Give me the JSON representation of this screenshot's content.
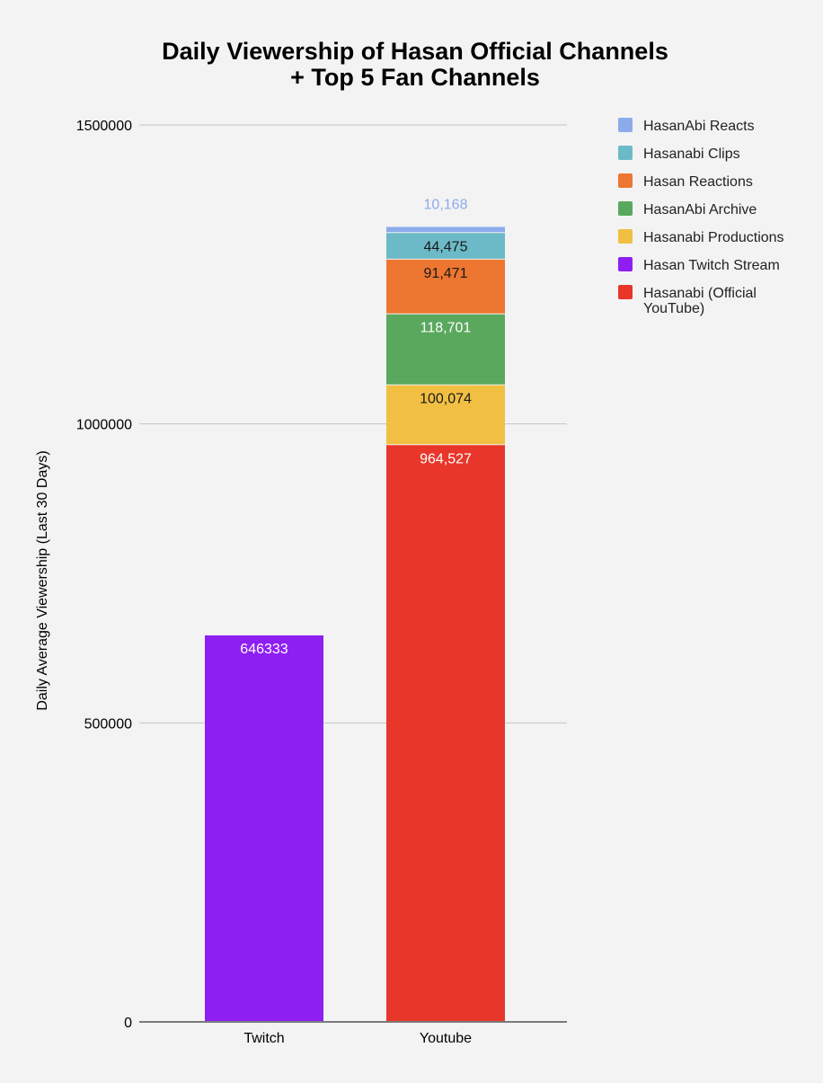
{
  "chart_data": {
    "type": "bar",
    "stacked": true,
    "title_lines": [
      "Daily Viewership of Hasan Official Channels",
      "+ Top 5 Fan Channels"
    ],
    "xlabel": "",
    "ylabel": "Daily Average Viewership (Last 30 Days)",
    "ylim": [
      0,
      1500000
    ],
    "yticks": [
      "0",
      "500000",
      "1000000",
      "1500000"
    ],
    "grid": true,
    "legend_position": "right",
    "categories": [
      "Twitch",
      "Youtube"
    ],
    "series": [
      {
        "name": "Hasanabi (Official YouTube)",
        "legend_lines": [
          "Hasanabi (Official",
          "YouTube)"
        ],
        "values": [
          0,
          964527
        ],
        "labels": [
          "",
          "964,527"
        ],
        "color": "#e8372a",
        "label_color": "#ffffff"
      },
      {
        "name": "Hasan Twitch Stream",
        "legend_lines": [
          "Hasan Twitch Stream"
        ],
        "values": [
          646333,
          0
        ],
        "labels": [
          "646333",
          ""
        ],
        "color": "#8e1ff2",
        "label_color": "#ffffff"
      },
      {
        "name": "Hasanabi Productions",
        "legend_lines": [
          "Hasanabi Productions"
        ],
        "values": [
          0,
          100074
        ],
        "labels": [
          "",
          "100,074"
        ],
        "color": "#f1bf42",
        "label_color": "#1a1a1a"
      },
      {
        "name": "HasanAbi Archive",
        "legend_lines": [
          "HasanAbi Archive"
        ],
        "values": [
          0,
          118701
        ],
        "labels": [
          "",
          "118,701"
        ],
        "color": "#5aa85e",
        "label_color": "#ffffff"
      },
      {
        "name": "Hasan Reactions",
        "legend_lines": [
          "Hasan Reactions"
        ],
        "values": [
          0,
          91471
        ],
        "labels": [
          "",
          "91,471"
        ],
        "color": "#ed7630",
        "label_color": "#1a1a1a"
      },
      {
        "name": "Hasanabi Clips",
        "legend_lines": [
          "Hasanabi Clips"
        ],
        "values": [
          0,
          44475
        ],
        "labels": [
          "",
          "44,475"
        ],
        "color": "#6cbac7",
        "label_color": "#1a1a1a"
      },
      {
        "name": "HasanAbi Reacts",
        "legend_lines": [
          "HasanAbi Reacts"
        ],
        "values": [
          0,
          10168
        ],
        "labels": [
          "",
          "10,168"
        ],
        "color": "#8cabec",
        "label_color": "#8cabec",
        "label_outside": true
      }
    ],
    "legend_order": [
      "HasanAbi Reacts",
      "Hasanabi Clips",
      "Hasan Reactions",
      "HasanAbi Archive",
      "Hasanabi Productions",
      "Hasan Twitch Stream",
      "Hasanabi (Official YouTube)"
    ]
  }
}
